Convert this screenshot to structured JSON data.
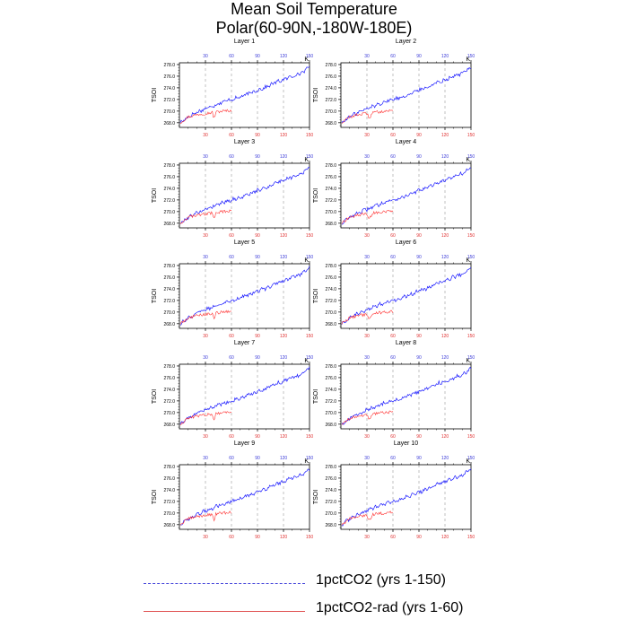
{
  "title": {
    "line1": "Mean Soil Temperature",
    "line2": "Polar(60-90N,-180W-180E)"
  },
  "legend": {
    "items": [
      {
        "label": "1pctCO2 (yrs 1-150)",
        "color": "#3b3bd8",
        "style": "dashed"
      },
      {
        "label": "1pctCO2-rad (yrs 1-60)",
        "color": "#e05050",
        "style": "solid"
      }
    ]
  },
  "chart_data": {
    "type": "line",
    "ylabel": "TSOI",
    "units": "K",
    "xlim": [
      0,
      150
    ],
    "ylim": [
      267.2,
      278.3
    ],
    "yticks": [
      "268.0",
      "270.0",
      "272.0",
      "274.0",
      "276.0",
      "278.0"
    ],
    "top_xticks": [
      "30",
      "60",
      "90",
      "120",
      "150"
    ],
    "bottom_xticks": [
      "30",
      "60",
      "90",
      "120",
      "150"
    ],
    "colors": {
      "series1": "#1a1aff",
      "series2": "#ff3030",
      "top_ticks": "#3b3bd8",
      "bottom_ticks": "#e03030"
    },
    "panels": [
      {
        "name": "Layer 1"
      },
      {
        "name": "Layer 2"
      },
      {
        "name": "Layer 3"
      },
      {
        "name": "Layer 4"
      },
      {
        "name": "Layer 5"
      },
      {
        "name": "Layer 6"
      },
      {
        "name": "Layer 7"
      },
      {
        "name": "Layer 8"
      },
      {
        "name": "Layer 9"
      },
      {
        "name": "Layer 10"
      }
    ],
    "series": [
      {
        "name": "1pctCO2 (yrs 1-150)",
        "x": [
          1,
          10,
          20,
          30,
          40,
          50,
          60,
          70,
          80,
          90,
          100,
          110,
          120,
          130,
          140,
          150
        ],
        "y": [
          268.0,
          269.0,
          269.8,
          270.4,
          271.0,
          271.6,
          272.0,
          272.4,
          273.0,
          273.6,
          274.1,
          274.9,
          275.4,
          276.0,
          276.5,
          277.6
        ]
      },
      {
        "name": "1pctCO2-rad (yrs 1-60)",
        "x": [
          1,
          10,
          20,
          30,
          40,
          50,
          60
        ],
        "y": [
          268.0,
          269.0,
          269.4,
          269.6,
          269.8,
          270.0,
          270.1
        ]
      }
    ]
  }
}
